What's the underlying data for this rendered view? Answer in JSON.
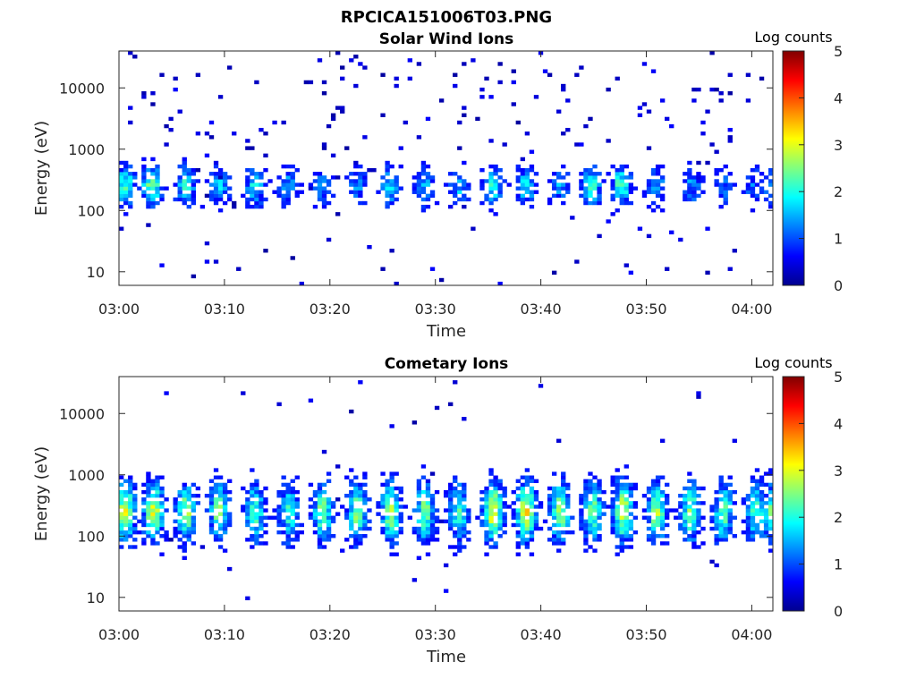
{
  "figure": {
    "title": "RPCICA151006T03.PNG"
  },
  "chart_data": [
    {
      "type": "heatmap",
      "title": "Solar Wind Ions",
      "xlabel": "Time",
      "ylabel": "Energy (eV)",
      "x_tick_labels": [
        "03:00",
        "03:10",
        "03:20",
        "03:30",
        "03:40",
        "03:50",
        "04:00"
      ],
      "x_range_minutes": [
        0,
        62
      ],
      "y_tick_labels": [
        "10",
        "100",
        "1000",
        "10000"
      ],
      "y_scale": "log",
      "y_range_ev": [
        6,
        40000
      ],
      "colorbar": {
        "label": "Log counts",
        "range": [
          0,
          5
        ],
        "tick_labels": [
          "0",
          "1",
          "2",
          "3",
          "4",
          "5"
        ],
        "colormap": "jet"
      },
      "burst_times_minutes": [
        0.6,
        3.1,
        6.3,
        9.5,
        12.9,
        16.1,
        19.3,
        22.6,
        25.7,
        29.0,
        32.3,
        35.5,
        38.6,
        41.8,
        44.8,
        47.6,
        51.0,
        54.3,
        57.4,
        60.2,
        61.8
      ],
      "burst_center_ev": 250,
      "burst_peak_log_counts": [
        2.2,
        2.5,
        2.0,
        1.6,
        1.8,
        1.4,
        1.3,
        1.2,
        1.6,
        1.4,
        1.5,
        1.9,
        1.8,
        1.3,
        2.0,
        2.2,
        1.3,
        1.3,
        1.0,
        1.1,
        1.0
      ]
    },
    {
      "type": "heatmap",
      "title": "Cometary Ions",
      "xlabel": "Time",
      "ylabel": "Energy (eV)",
      "x_tick_labels": [
        "03:00",
        "03:10",
        "03:20",
        "03:30",
        "03:40",
        "03:50",
        "04:00"
      ],
      "x_range_minutes": [
        0,
        62
      ],
      "y_tick_labels": [
        "10",
        "100",
        "1000",
        "10000"
      ],
      "y_scale": "log",
      "y_range_ev": [
        6,
        40000
      ],
      "colorbar": {
        "label": "Log counts",
        "range": [
          0,
          5
        ],
        "tick_labels": [
          "0",
          "1",
          "2",
          "3",
          "4",
          "5"
        ],
        "colormap": "jet"
      },
      "burst_times_minutes": [
        0.6,
        3.3,
        6.4,
        9.5,
        12.9,
        16.1,
        19.3,
        22.6,
        25.8,
        29.0,
        32.2,
        35.5,
        38.6,
        41.8,
        44.9,
        47.8,
        51.0,
        54.2,
        57.3,
        60.4,
        61.9
      ],
      "burst_center_ev": 250,
      "burst_peak_log_counts": [
        3.0,
        2.9,
        2.6,
        2.4,
        2.2,
        2.0,
        2.4,
        2.5,
        2.6,
        2.4,
        2.1,
        3.0,
        3.1,
        2.6,
        2.4,
        2.9,
        2.7,
        2.4,
        2.3,
        2.1,
        2.2
      ]
    }
  ]
}
